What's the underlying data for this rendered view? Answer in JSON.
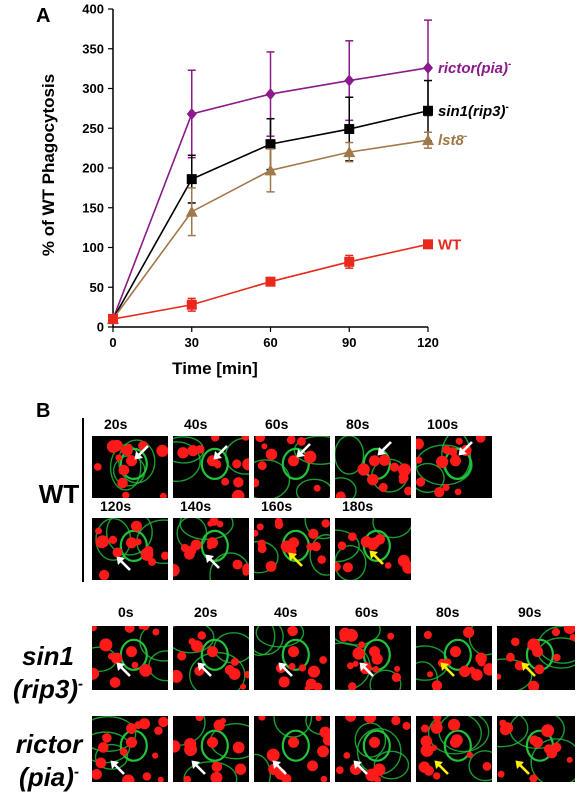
{
  "panel_a_label": "A",
  "panel_b_label": "B",
  "chart_data": {
    "type": "line",
    "xlabel": "Time [min]",
    "ylabel": "% of WT Phagocytosis",
    "x": [
      0,
      30,
      60,
      90,
      120
    ],
    "xticks": [
      "0",
      "30",
      "60",
      "90",
      "120"
    ],
    "yticks": [
      "0",
      "50",
      "100",
      "150",
      "200",
      "250",
      "300",
      "350",
      "400"
    ],
    "xlim": [
      0,
      120
    ],
    "ylim": [
      0,
      400
    ],
    "grid": false,
    "series": [
      {
        "name": "rictor(pia)",
        "sup": "-",
        "marker": "diamond",
        "color": "#8B1A8B",
        "values": [
          10,
          268,
          293,
          310,
          326
        ],
        "errors": [
          0,
          55,
          53,
          50,
          60
        ]
      },
      {
        "name": "sin1(rip3)",
        "sup": "-",
        "marker": "square",
        "color": "#000000",
        "values": [
          10,
          186,
          230,
          249,
          272
        ],
        "errors": [
          0,
          30,
          32,
          40,
          38
        ]
      },
      {
        "name": "lst8",
        "sup": "-",
        "marker": "triangle",
        "color": "#A0784A",
        "values": [
          10,
          145,
          197,
          220,
          235
        ],
        "errors": [
          0,
          30,
          27,
          12,
          10
        ]
      },
      {
        "name": "WT",
        "sup": "",
        "marker": "square",
        "color": "#E8291C",
        "values": [
          10,
          28,
          57,
          82,
          104
        ],
        "errors": [
          0,
          8,
          3,
          8,
          3
        ]
      }
    ]
  },
  "panel_b": {
    "wt": {
      "label": "WT",
      "row1": [
        "20s",
        "40s",
        "60s",
        "80s",
        "100s"
      ],
      "row2": [
        "120s",
        "140s",
        "160s",
        "180s"
      ]
    },
    "sin1": {
      "label_line1": "sin1",
      "label_line2": "(rip3)",
      "sup": "-",
      "times": [
        "0s",
        "20s",
        "40s",
        "60s",
        "80s",
        "90s"
      ]
    },
    "rictor": {
      "label_line1": "rictor",
      "label_line2": "(pia)",
      "sup": "-"
    },
    "colors": {
      "membrane": "#22c23a",
      "particle": "#ff1a1a",
      "arrow_white": "#ffffff",
      "arrow_yellow": "#ffee00"
    }
  }
}
